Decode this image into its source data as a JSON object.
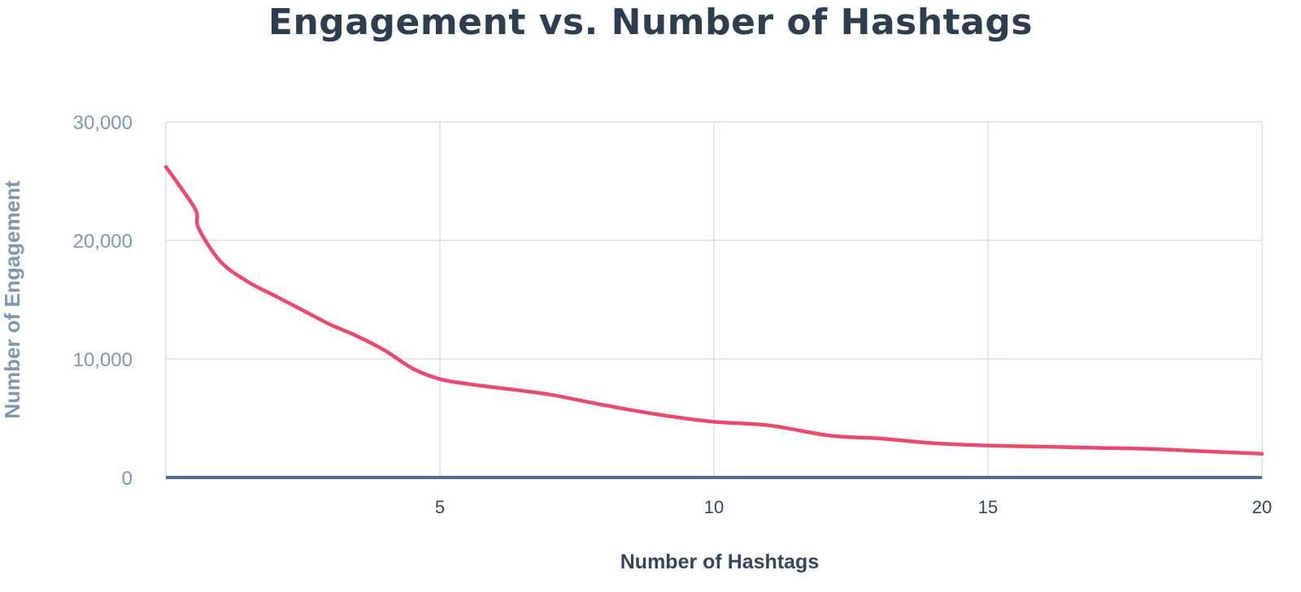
{
  "colors": {
    "line": "#f2456b",
    "grid": "#d6e0ec",
    "axis": "#506e91",
    "title": "#2d3e50"
  },
  "chart_data": {
    "type": "line",
    "title": "Engagement vs. Number of Hashtags",
    "xlabel": "Number of Hashtags",
    "ylabel": "Number of Engagement",
    "xlim": [
      0,
      20
    ],
    "ylim": [
      0,
      30000
    ],
    "x_ticks": [
      5,
      10,
      15,
      20
    ],
    "x_tick_labels": [
      "5",
      "10",
      "15",
      "20"
    ],
    "y_ticks": [
      0,
      10000,
      20000,
      30000
    ],
    "y_tick_labels": [
      "0",
      "10,000",
      "20,000",
      "30,000"
    ],
    "grid": true,
    "legend": "none",
    "series": [
      {
        "x": [
          0,
          0.25,
          0.55,
          0.6,
          1,
          1.5,
          2,
          2.5,
          3,
          3.5,
          4,
          4.5,
          5,
          5.5,
          6,
          7,
          8,
          9,
          10,
          11,
          12,
          12.5,
          13,
          14,
          15,
          16,
          17,
          18,
          19,
          20
        ],
        "y": [
          26200,
          24600,
          22500,
          21000,
          18200,
          16500,
          15300,
          14100,
          12900,
          11900,
          10700,
          9200,
          8300,
          7900,
          7600,
          7000,
          6100,
          5300,
          4700,
          4400,
          3600,
          3400,
          3300,
          2900,
          2700,
          2600,
          2500,
          2400,
          2200,
          2000
        ]
      }
    ]
  }
}
